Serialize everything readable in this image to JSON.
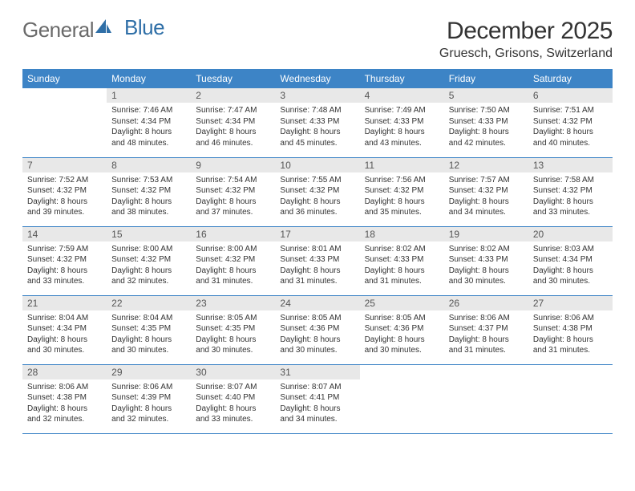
{
  "brand": {
    "part1": "General",
    "part2": "Blue"
  },
  "title": "December 2025",
  "location": "Gruesch, Grisons, Switzerland",
  "colors": {
    "header_bg": "#3d84c6",
    "header_text": "#ffffff",
    "daynum_bg": "#e8e8e8",
    "text": "#333333",
    "rule": "#3d84c6"
  },
  "typography": {
    "title_fontsize": 30,
    "location_fontsize": 16,
    "th_fontsize": 12,
    "cell_fontsize": 10
  },
  "weekdays": [
    "Sunday",
    "Monday",
    "Tuesday",
    "Wednesday",
    "Thursday",
    "Friday",
    "Saturday"
  ],
  "weeks": [
    [
      null,
      {
        "n": "1",
        "sr": "Sunrise: 7:46 AM",
        "ss": "Sunset: 4:34 PM",
        "d1": "Daylight: 8 hours",
        "d2": "and 48 minutes."
      },
      {
        "n": "2",
        "sr": "Sunrise: 7:47 AM",
        "ss": "Sunset: 4:34 PM",
        "d1": "Daylight: 8 hours",
        "d2": "and 46 minutes."
      },
      {
        "n": "3",
        "sr": "Sunrise: 7:48 AM",
        "ss": "Sunset: 4:33 PM",
        "d1": "Daylight: 8 hours",
        "d2": "and 45 minutes."
      },
      {
        "n": "4",
        "sr": "Sunrise: 7:49 AM",
        "ss": "Sunset: 4:33 PM",
        "d1": "Daylight: 8 hours",
        "d2": "and 43 minutes."
      },
      {
        "n": "5",
        "sr": "Sunrise: 7:50 AM",
        "ss": "Sunset: 4:33 PM",
        "d1": "Daylight: 8 hours",
        "d2": "and 42 minutes."
      },
      {
        "n": "6",
        "sr": "Sunrise: 7:51 AM",
        "ss": "Sunset: 4:32 PM",
        "d1": "Daylight: 8 hours",
        "d2": "and 40 minutes."
      }
    ],
    [
      {
        "n": "7",
        "sr": "Sunrise: 7:52 AM",
        "ss": "Sunset: 4:32 PM",
        "d1": "Daylight: 8 hours",
        "d2": "and 39 minutes."
      },
      {
        "n": "8",
        "sr": "Sunrise: 7:53 AM",
        "ss": "Sunset: 4:32 PM",
        "d1": "Daylight: 8 hours",
        "d2": "and 38 minutes."
      },
      {
        "n": "9",
        "sr": "Sunrise: 7:54 AM",
        "ss": "Sunset: 4:32 PM",
        "d1": "Daylight: 8 hours",
        "d2": "and 37 minutes."
      },
      {
        "n": "10",
        "sr": "Sunrise: 7:55 AM",
        "ss": "Sunset: 4:32 PM",
        "d1": "Daylight: 8 hours",
        "d2": "and 36 minutes."
      },
      {
        "n": "11",
        "sr": "Sunrise: 7:56 AM",
        "ss": "Sunset: 4:32 PM",
        "d1": "Daylight: 8 hours",
        "d2": "and 35 minutes."
      },
      {
        "n": "12",
        "sr": "Sunrise: 7:57 AM",
        "ss": "Sunset: 4:32 PM",
        "d1": "Daylight: 8 hours",
        "d2": "and 34 minutes."
      },
      {
        "n": "13",
        "sr": "Sunrise: 7:58 AM",
        "ss": "Sunset: 4:32 PM",
        "d1": "Daylight: 8 hours",
        "d2": "and 33 minutes."
      }
    ],
    [
      {
        "n": "14",
        "sr": "Sunrise: 7:59 AM",
        "ss": "Sunset: 4:32 PM",
        "d1": "Daylight: 8 hours",
        "d2": "and 33 minutes."
      },
      {
        "n": "15",
        "sr": "Sunrise: 8:00 AM",
        "ss": "Sunset: 4:32 PM",
        "d1": "Daylight: 8 hours",
        "d2": "and 32 minutes."
      },
      {
        "n": "16",
        "sr": "Sunrise: 8:00 AM",
        "ss": "Sunset: 4:32 PM",
        "d1": "Daylight: 8 hours",
        "d2": "and 31 minutes."
      },
      {
        "n": "17",
        "sr": "Sunrise: 8:01 AM",
        "ss": "Sunset: 4:33 PM",
        "d1": "Daylight: 8 hours",
        "d2": "and 31 minutes."
      },
      {
        "n": "18",
        "sr": "Sunrise: 8:02 AM",
        "ss": "Sunset: 4:33 PM",
        "d1": "Daylight: 8 hours",
        "d2": "and 31 minutes."
      },
      {
        "n": "19",
        "sr": "Sunrise: 8:02 AM",
        "ss": "Sunset: 4:33 PM",
        "d1": "Daylight: 8 hours",
        "d2": "and 30 minutes."
      },
      {
        "n": "20",
        "sr": "Sunrise: 8:03 AM",
        "ss": "Sunset: 4:34 PM",
        "d1": "Daylight: 8 hours",
        "d2": "and 30 minutes."
      }
    ],
    [
      {
        "n": "21",
        "sr": "Sunrise: 8:04 AM",
        "ss": "Sunset: 4:34 PM",
        "d1": "Daylight: 8 hours",
        "d2": "and 30 minutes."
      },
      {
        "n": "22",
        "sr": "Sunrise: 8:04 AM",
        "ss": "Sunset: 4:35 PM",
        "d1": "Daylight: 8 hours",
        "d2": "and 30 minutes."
      },
      {
        "n": "23",
        "sr": "Sunrise: 8:05 AM",
        "ss": "Sunset: 4:35 PM",
        "d1": "Daylight: 8 hours",
        "d2": "and 30 minutes."
      },
      {
        "n": "24",
        "sr": "Sunrise: 8:05 AM",
        "ss": "Sunset: 4:36 PM",
        "d1": "Daylight: 8 hours",
        "d2": "and 30 minutes."
      },
      {
        "n": "25",
        "sr": "Sunrise: 8:05 AM",
        "ss": "Sunset: 4:36 PM",
        "d1": "Daylight: 8 hours",
        "d2": "and 30 minutes."
      },
      {
        "n": "26",
        "sr": "Sunrise: 8:06 AM",
        "ss": "Sunset: 4:37 PM",
        "d1": "Daylight: 8 hours",
        "d2": "and 31 minutes."
      },
      {
        "n": "27",
        "sr": "Sunrise: 8:06 AM",
        "ss": "Sunset: 4:38 PM",
        "d1": "Daylight: 8 hours",
        "d2": "and 31 minutes."
      }
    ],
    [
      {
        "n": "28",
        "sr": "Sunrise: 8:06 AM",
        "ss": "Sunset: 4:38 PM",
        "d1": "Daylight: 8 hours",
        "d2": "and 32 minutes."
      },
      {
        "n": "29",
        "sr": "Sunrise: 8:06 AM",
        "ss": "Sunset: 4:39 PM",
        "d1": "Daylight: 8 hours",
        "d2": "and 32 minutes."
      },
      {
        "n": "30",
        "sr": "Sunrise: 8:07 AM",
        "ss": "Sunset: 4:40 PM",
        "d1": "Daylight: 8 hours",
        "d2": "and 33 minutes."
      },
      {
        "n": "31",
        "sr": "Sunrise: 8:07 AM",
        "ss": "Sunset: 4:41 PM",
        "d1": "Daylight: 8 hours",
        "d2": "and 34 minutes."
      },
      null,
      null,
      null
    ]
  ]
}
